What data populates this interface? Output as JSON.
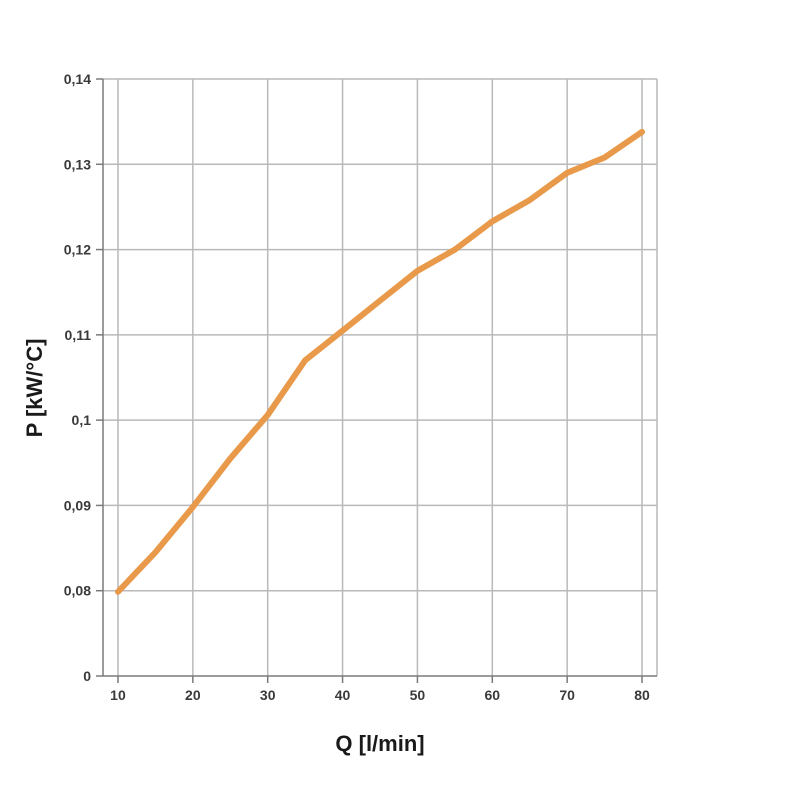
{
  "chart_data": {
    "type": "line",
    "title": "",
    "xlabel": "Q [l/min]",
    "ylabel": "P [kW/°C]",
    "x_ticks": [
      "10",
      "20",
      "30",
      "40",
      "50",
      "60",
      "70",
      "80"
    ],
    "x_tick_values": [
      10,
      20,
      30,
      40,
      50,
      60,
      70,
      80
    ],
    "y_ticks": [
      "0",
      "0,08",
      "0,09",
      "0,1",
      "0,11",
      "0,12",
      "0,13",
      "0,14"
    ],
    "y_tick_values": [
      0,
      0.08,
      0.09,
      0.1,
      0.11,
      0.12,
      0.13,
      0.14
    ],
    "y_axis_break": "0 to 0.08 compressed into one grid step",
    "xlim": [
      8,
      82
    ],
    "ylim": [
      0,
      0.14
    ],
    "grid": true,
    "legend": "none",
    "series": [
      {
        "color": "#e8994a",
        "x": [
          10,
          15,
          20,
          25,
          30,
          35,
          40,
          45,
          50,
          55,
          60,
          65,
          70,
          75,
          80
        ],
        "y": [
          0.079,
          0.0845,
          0.0898,
          0.0955,
          0.1006,
          0.107,
          0.1105,
          0.114,
          0.1175,
          0.12,
          0.1233,
          0.1258,
          0.129,
          0.1308,
          0.1338
        ]
      }
    ]
  }
}
